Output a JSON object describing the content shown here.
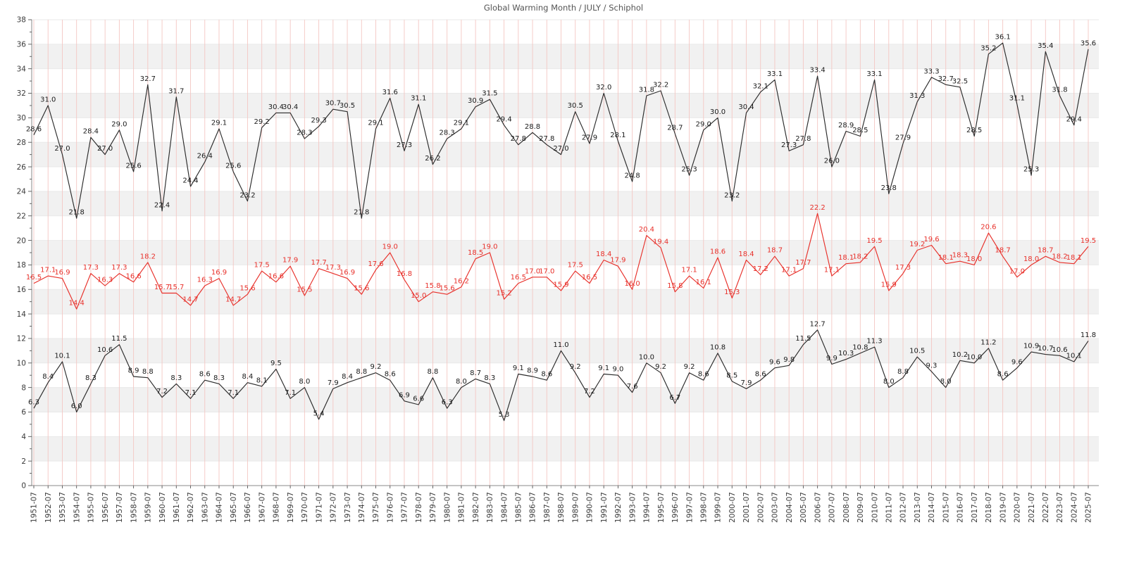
{
  "title": "Global Warming Month / JULY / Schiphol",
  "chart_data": {
    "type": "line",
    "title": "Global Warming Month / JULY / Schiphol",
    "xlabel": "",
    "ylabel": "",
    "legend": "none",
    "ylim": [
      0,
      38
    ],
    "ytick_step": 2,
    "x": [
      "1951-07",
      "1952-07",
      "1953-07",
      "1954-07",
      "1955-07",
      "1956-07",
      "1957-07",
      "1958-07",
      "1959-07",
      "1960-07",
      "1961-07",
      "1962-07",
      "1963-07",
      "1964-07",
      "1965-07",
      "1966-07",
      "1967-07",
      "1968-07",
      "1969-07",
      "1970-07",
      "1971-07",
      "1972-07",
      "1973-07",
      "1974-07",
      "1975-07",
      "1976-07",
      "1977-07",
      "1978-07",
      "1979-07",
      "1980-07",
      "1981-07",
      "1982-07",
      "1983-07",
      "1984-07",
      "1985-07",
      "1986-07",
      "1987-07",
      "1988-07",
      "1989-07",
      "1990-07",
      "1991-07",
      "1992-07",
      "1993-07",
      "1994-07",
      "1995-07",
      "1996-07",
      "1997-07",
      "1998-07",
      "1999-07",
      "2000-07",
      "2001-07",
      "2002-07",
      "2003-07",
      "2004-07",
      "2005-07",
      "2006-07",
      "2007-07",
      "2008-07",
      "2009-07",
      "2010-07",
      "2011-07",
      "2012-07",
      "2013-07",
      "2014-07",
      "2015-07",
      "2016-07",
      "2017-07",
      "2018-07",
      "2019-07",
      "2020-07",
      "2021-07",
      "2022-07",
      "2023-07",
      "2024-07",
      "2025-07"
    ],
    "series": [
      {
        "name": "monthly-max",
        "color": "#2b2b2b",
        "label_color": "#1a1a1a",
        "values": [
          28.6,
          31.0,
          27.0,
          21.8,
          28.4,
          27.0,
          29.0,
          25.6,
          32.7,
          22.4,
          31.7,
          24.4,
          26.4,
          29.1,
          25.6,
          23.2,
          29.2,
          30.4,
          30.4,
          28.3,
          29.3,
          30.7,
          30.5,
          21.8,
          29.1,
          31.6,
          27.3,
          31.1,
          26.2,
          28.3,
          29.1,
          30.9,
          31.5,
          29.4,
          27.8,
          28.8,
          27.8,
          27.0,
          30.5,
          27.9,
          32.0,
          28.1,
          24.8,
          31.8,
          32.2,
          28.7,
          25.3,
          29.0,
          30.0,
          23.2,
          30.4,
          32.1,
          33.1,
          27.3,
          27.8,
          33.4,
          26.0,
          28.9,
          28.5,
          33.1,
          23.8,
          27.9,
          31.3,
          33.3,
          32.7,
          32.5,
          28.5,
          35.2,
          36.1,
          31.1,
          25.3,
          35.4,
          31.8,
          29.4,
          35.6
        ]
      },
      {
        "name": "monthly-mean",
        "color": "#e8302a",
        "label_color": "#e8302a",
        "values": [
          16.5,
          17.1,
          16.9,
          14.4,
          17.3,
          16.3,
          17.3,
          16.6,
          18.2,
          15.7,
          15.7,
          14.7,
          16.3,
          16.9,
          14.7,
          15.6,
          17.5,
          16.6,
          17.9,
          15.5,
          17.7,
          17.3,
          16.9,
          15.6,
          17.6,
          19.0,
          16.8,
          15.0,
          15.8,
          15.6,
          16.2,
          18.5,
          19.0,
          15.2,
          16.5,
          17.0,
          17.0,
          15.9,
          17.5,
          16.5,
          18.4,
          17.9,
          16.0,
          20.4,
          19.4,
          15.8,
          17.1,
          16.1,
          18.6,
          15.3,
          18.4,
          17.2,
          18.7,
          17.1,
          17.7,
          22.2,
          17.1,
          18.1,
          18.2,
          19.5,
          15.9,
          17.3,
          19.2,
          19.6,
          18.1,
          18.3,
          18.0,
          20.6,
          18.7,
          17.0,
          18.0,
          18.7,
          18.2,
          18.1,
          19.5
        ]
      },
      {
        "name": "monthly-min",
        "color": "#2b2b2b",
        "label_color": "#1a1a1a",
        "values": [
          6.3,
          8.4,
          10.1,
          6.0,
          8.3,
          10.6,
          11.5,
          8.9,
          8.8,
          7.2,
          8.3,
          7.1,
          8.6,
          8.3,
          7.1,
          8.4,
          8.1,
          9.5,
          7.1,
          8.0,
          5.4,
          7.9,
          8.4,
          8.8,
          9.2,
          8.6,
          6.9,
          6.6,
          8.8,
          6.3,
          8.0,
          8.7,
          8.3,
          5.3,
          9.1,
          8.9,
          8.6,
          11.0,
          9.2,
          7.2,
          9.1,
          9.0,
          7.6,
          10.0,
          9.2,
          6.7,
          9.2,
          8.6,
          10.8,
          8.5,
          7.9,
          8.6,
          9.6,
          9.8,
          11.5,
          12.7,
          9.9,
          10.3,
          10.8,
          11.3,
          8.0,
          8.8,
          10.5,
          9.3,
          8.0,
          10.2,
          10.0,
          11.2,
          8.6,
          9.6,
          10.9,
          10.7,
          10.6,
          10.1,
          11.8
        ]
      }
    ],
    "style": {
      "band_fill": "#f1f1f1",
      "hgrid_color": "#e9e9e9",
      "vgrid_color": "#f4c7c3",
      "spine_color": "#8a8a8a",
      "tick_color": "#555555",
      "axis_text_color": "#3a3a3a",
      "title_color": "#555555"
    }
  }
}
